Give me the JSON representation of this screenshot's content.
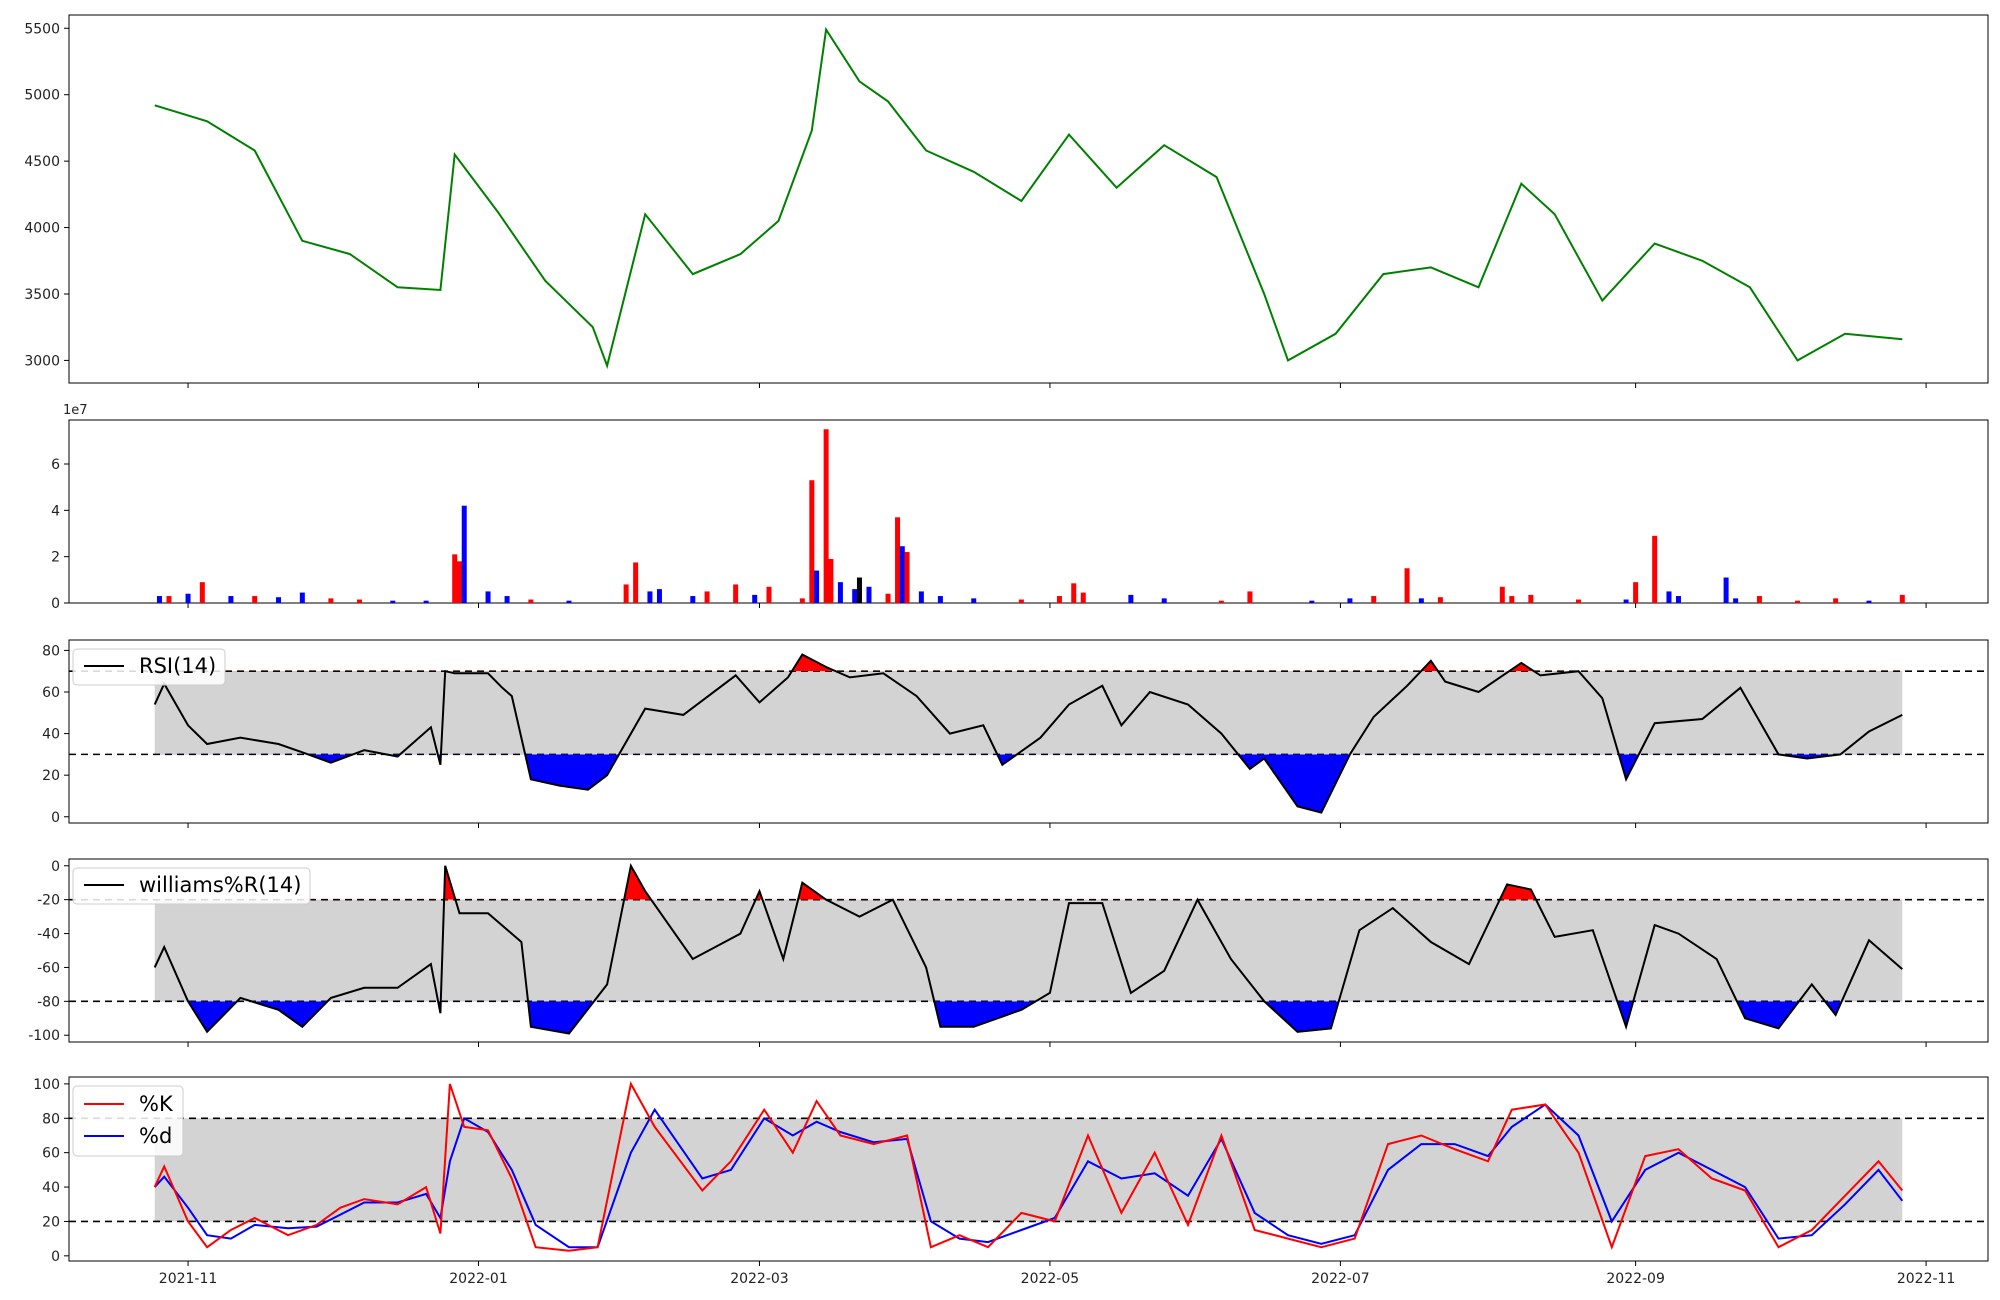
{
  "figure": {
    "x_ticks": [
      "2021-11",
      "2022-01",
      "2022-03",
      "2022-05",
      "2022-07",
      "2022-09",
      "2022-11"
    ],
    "scale_note": "1e7"
  },
  "colors": {
    "price": "#008000",
    "up": "#ff0000",
    "down": "#0000ff",
    "neutral": "#000000",
    "band": "#d3d3d3",
    "k": "#ff0000",
    "d": "#0000ff"
  },
  "chart_data": [
    {
      "type": "line",
      "name": "price",
      "y_ticks": [
        "3000",
        "3500",
        "4000",
        "4500",
        "5000",
        "5500"
      ],
      "ylim": [
        2830,
        5600
      ],
      "x_dates": [
        "2021-10-25",
        "2021-11-05",
        "2021-11-15",
        "2021-11-25",
        "2021-12-05",
        "2021-12-15",
        "2021-12-24",
        "2021-12-27",
        "2022-01-05",
        "2022-01-15",
        "2022-01-25",
        "2022-01-28",
        "2022-02-05",
        "2022-02-15",
        "2022-02-25",
        "2022-03-05",
        "2022-03-12",
        "2022-03-15",
        "2022-03-22",
        "2022-03-28",
        "2022-04-05",
        "2022-04-15",
        "2022-04-25",
        "2022-05-05",
        "2022-05-15",
        "2022-05-25",
        "2022-06-05",
        "2022-06-15",
        "2022-06-20",
        "2022-06-30",
        "2022-07-10",
        "2022-07-20",
        "2022-07-30",
        "2022-08-08",
        "2022-08-15",
        "2022-08-25",
        "2022-09-05",
        "2022-09-15",
        "2022-09-25",
        "2022-10-05",
        "2022-10-15",
        "2022-10-27"
      ],
      "values": [
        4920,
        4800,
        4580,
        3900,
        3800,
        3550,
        3530,
        4550,
        4120,
        3600,
        3250,
        2960,
        4100,
        3650,
        3800,
        4050,
        4730,
        5490,
        5100,
        4950,
        4580,
        4420,
        4200,
        4700,
        4300,
        4620,
        4380,
        3500,
        3000,
        3200,
        3650,
        3700,
        3550,
        4330,
        4100,
        3450,
        3880,
        3750,
        3550,
        3000,
        3200,
        3160
      ]
    },
    {
      "type": "bar",
      "name": "volume",
      "y_ticks": [
        "0",
        "2",
        "4",
        "6"
      ],
      "ylim": [
        0,
        7.9
      ],
      "bars": [
        {
          "date": "2021-10-26",
          "value": 0.3,
          "dir": "down"
        },
        {
          "date": "2021-10-28",
          "value": 0.3,
          "dir": "up"
        },
        {
          "date": "2021-11-01",
          "value": 0.4,
          "dir": "down"
        },
        {
          "date": "2021-11-04",
          "value": 0.9,
          "dir": "up"
        },
        {
          "date": "2021-11-10",
          "value": 0.3,
          "dir": "down"
        },
        {
          "date": "2021-11-15",
          "value": 0.3,
          "dir": "up"
        },
        {
          "date": "2021-11-20",
          "value": 0.25,
          "dir": "down"
        },
        {
          "date": "2021-11-25",
          "value": 0.45,
          "dir": "down"
        },
        {
          "date": "2021-12-01",
          "value": 0.2,
          "dir": "up"
        },
        {
          "date": "2021-12-07",
          "value": 0.15,
          "dir": "up"
        },
        {
          "date": "2021-12-14",
          "value": 0.1,
          "dir": "down"
        },
        {
          "date": "2021-12-21",
          "value": 0.1,
          "dir": "down"
        },
        {
          "date": "2021-12-27",
          "value": 2.1,
          "dir": "up"
        },
        {
          "date": "2021-12-28",
          "value": 1.8,
          "dir": "up"
        },
        {
          "date": "2021-12-29",
          "value": 4.2,
          "dir": "down"
        },
        {
          "date": "2022-01-03",
          "value": 0.5,
          "dir": "down"
        },
        {
          "date": "2022-01-07",
          "value": 0.3,
          "dir": "down"
        },
        {
          "date": "2022-01-12",
          "value": 0.15,
          "dir": "up"
        },
        {
          "date": "2022-01-20",
          "value": 0.1,
          "dir": "down"
        },
        {
          "date": "2022-02-01",
          "value": 0.8,
          "dir": "up"
        },
        {
          "date": "2022-02-03",
          "value": 1.75,
          "dir": "up"
        },
        {
          "date": "2022-02-06",
          "value": 0.5,
          "dir": "down"
        },
        {
          "date": "2022-02-08",
          "value": 0.6,
          "dir": "down"
        },
        {
          "date": "2022-02-15",
          "value": 0.3,
          "dir": "down"
        },
        {
          "date": "2022-02-18",
          "value": 0.5,
          "dir": "up"
        },
        {
          "date": "2022-02-24",
          "value": 0.8,
          "dir": "up"
        },
        {
          "date": "2022-02-28",
          "value": 0.35,
          "dir": "down"
        },
        {
          "date": "2022-03-03",
          "value": 0.7,
          "dir": "up"
        },
        {
          "date": "2022-03-10",
          "value": 0.2,
          "dir": "up"
        },
        {
          "date": "2022-03-12",
          "value": 5.3,
          "dir": "up"
        },
        {
          "date": "2022-03-13",
          "value": 1.4,
          "dir": "down"
        },
        {
          "date": "2022-03-15",
          "value": 7.5,
          "dir": "up"
        },
        {
          "date": "2022-03-16",
          "value": 1.9,
          "dir": "up"
        },
        {
          "date": "2022-03-18",
          "value": 0.9,
          "dir": "down"
        },
        {
          "date": "2022-03-21",
          "value": 0.6,
          "dir": "down"
        },
        {
          "date": "2022-03-22",
          "value": 1.1,
          "dir": "neutral"
        },
        {
          "date": "2022-03-24",
          "value": 0.7,
          "dir": "down"
        },
        {
          "date": "2022-03-28",
          "value": 0.4,
          "dir": "up"
        },
        {
          "date": "2022-03-30",
          "value": 3.7,
          "dir": "up"
        },
        {
          "date": "2022-03-31",
          "value": 2.45,
          "dir": "down"
        },
        {
          "date": "2022-04-01",
          "value": 2.2,
          "dir": "up"
        },
        {
          "date": "2022-04-04",
          "value": 0.5,
          "dir": "down"
        },
        {
          "date": "2022-04-08",
          "value": 0.3,
          "dir": "down"
        },
        {
          "date": "2022-04-15",
          "value": 0.2,
          "dir": "down"
        },
        {
          "date": "2022-04-25",
          "value": 0.15,
          "dir": "up"
        },
        {
          "date": "2022-05-03",
          "value": 0.3,
          "dir": "up"
        },
        {
          "date": "2022-05-06",
          "value": 0.85,
          "dir": "up"
        },
        {
          "date": "2022-05-08",
          "value": 0.45,
          "dir": "up"
        },
        {
          "date": "2022-05-18",
          "value": 0.35,
          "dir": "down"
        },
        {
          "date": "2022-05-25",
          "value": 0.2,
          "dir": "down"
        },
        {
          "date": "2022-06-06",
          "value": 0.1,
          "dir": "up"
        },
        {
          "date": "2022-06-12",
          "value": 0.5,
          "dir": "up"
        },
        {
          "date": "2022-06-25",
          "value": 0.1,
          "dir": "down"
        },
        {
          "date": "2022-07-03",
          "value": 0.2,
          "dir": "down"
        },
        {
          "date": "2022-07-08",
          "value": 0.3,
          "dir": "up"
        },
        {
          "date": "2022-07-15",
          "value": 1.5,
          "dir": "up"
        },
        {
          "date": "2022-07-18",
          "value": 0.2,
          "dir": "down"
        },
        {
          "date": "2022-07-22",
          "value": 0.25,
          "dir": "up"
        },
        {
          "date": "2022-08-04",
          "value": 0.7,
          "dir": "up"
        },
        {
          "date": "2022-08-06",
          "value": 0.3,
          "dir": "up"
        },
        {
          "date": "2022-08-10",
          "value": 0.35,
          "dir": "up"
        },
        {
          "date": "2022-08-20",
          "value": 0.15,
          "dir": "up"
        },
        {
          "date": "2022-08-30",
          "value": 0.15,
          "dir": "down"
        },
        {
          "date": "2022-09-01",
          "value": 0.9,
          "dir": "up"
        },
        {
          "date": "2022-09-05",
          "value": 2.9,
          "dir": "up"
        },
        {
          "date": "2022-09-08",
          "value": 0.5,
          "dir": "down"
        },
        {
          "date": "2022-09-10",
          "value": 0.3,
          "dir": "down"
        },
        {
          "date": "2022-09-20",
          "value": 1.1,
          "dir": "down"
        },
        {
          "date": "2022-09-22",
          "value": 0.2,
          "dir": "down"
        },
        {
          "date": "2022-09-27",
          "value": 0.3,
          "dir": "up"
        },
        {
          "date": "2022-10-05",
          "value": 0.1,
          "dir": "up"
        },
        {
          "date": "2022-10-13",
          "value": 0.2,
          "dir": "up"
        },
        {
          "date": "2022-10-20",
          "value": 0.1,
          "dir": "down"
        },
        {
          "date": "2022-10-27",
          "value": 0.35,
          "dir": "up"
        }
      ]
    },
    {
      "type": "line",
      "name": "RSI",
      "legend": "RSI(14)",
      "y_ticks": [
        "0",
        "20",
        "40",
        "60",
        "80"
      ],
      "ylim": [
        -3,
        85
      ],
      "band": [
        30,
        70
      ],
      "x_dates": [
        "2021-10-25",
        "2021-10-27",
        "2021-11-01",
        "2021-11-05",
        "2021-11-12",
        "2021-11-20",
        "2021-11-25",
        "2021-12-01",
        "2021-12-08",
        "2021-12-15",
        "2021-12-22",
        "2021-12-24",
        "2021-12-25",
        "2021-12-27",
        "2022-01-03",
        "2022-01-06",
        "2022-01-08",
        "2022-01-12",
        "2022-01-18",
        "2022-01-24",
        "2022-01-28",
        "2022-02-05",
        "2022-02-13",
        "2022-02-24",
        "2022-03-01",
        "2022-03-07",
        "2022-03-10",
        "2022-03-15",
        "2022-03-20",
        "2022-03-27",
        "2022-04-03",
        "2022-04-10",
        "2022-04-17",
        "2022-04-21",
        "2022-04-29",
        "2022-05-05",
        "2022-05-12",
        "2022-05-16",
        "2022-05-22",
        "2022-05-30",
        "2022-06-06",
        "2022-06-12",
        "2022-06-15",
        "2022-06-22",
        "2022-06-27",
        "2022-07-03",
        "2022-07-08",
        "2022-07-15",
        "2022-07-20",
        "2022-07-23",
        "2022-07-30",
        "2022-08-08",
        "2022-08-12",
        "2022-08-20",
        "2022-08-25",
        "2022-08-30",
        "2022-09-05",
        "2022-09-15",
        "2022-09-23",
        "2022-10-01",
        "2022-10-07",
        "2022-10-14",
        "2022-10-20",
        "2022-10-27"
      ],
      "values": [
        54,
        64,
        44,
        35,
        38,
        35,
        31,
        26,
        32,
        29,
        43,
        25,
        70,
        69,
        69,
        62,
        58,
        18,
        15,
        13,
        20,
        52,
        49,
        68,
        55,
        67,
        78,
        72,
        67,
        69,
        58,
        40,
        44,
        25,
        38,
        54,
        63,
        44,
        60,
        54,
        40,
        23,
        28,
        5,
        2,
        30,
        48,
        63,
        75,
        65,
        60,
        74,
        68,
        70,
        57,
        18,
        45,
        47,
        62,
        30,
        28,
        30,
        41,
        49
      ]
    },
    {
      "type": "line",
      "name": "williams",
      "legend": "williams%R(14)",
      "y_ticks": [
        "-100",
        "-80",
        "-60",
        "-40",
        "-20",
        "0"
      ],
      "ylim": [
        -104,
        4
      ],
      "band": [
        -80,
        -20
      ],
      "x_dates": [
        "2021-10-25",
        "2021-10-27",
        "2021-11-01",
        "2021-11-05",
        "2021-11-12",
        "2021-11-20",
        "2021-11-25",
        "2021-12-01",
        "2021-12-08",
        "2021-12-15",
        "2021-12-22",
        "2021-12-24",
        "2021-12-25",
        "2021-12-28",
        "2022-01-03",
        "2022-01-10",
        "2022-01-12",
        "2022-01-20",
        "2022-01-28",
        "2022-02-02",
        "2022-02-05",
        "2022-02-15",
        "2022-02-25",
        "2022-03-01",
        "2022-03-06",
        "2022-03-10",
        "2022-03-15",
        "2022-03-22",
        "2022-03-29",
        "2022-04-05",
        "2022-04-08",
        "2022-04-15",
        "2022-04-25",
        "2022-05-01",
        "2022-05-05",
        "2022-05-12",
        "2022-05-18",
        "2022-05-25",
        "2022-06-01",
        "2022-06-08",
        "2022-06-15",
        "2022-06-22",
        "2022-06-29",
        "2022-07-05",
        "2022-07-12",
        "2022-07-20",
        "2022-07-28",
        "2022-08-05",
        "2022-08-10",
        "2022-08-15",
        "2022-08-23",
        "2022-08-30",
        "2022-09-05",
        "2022-09-10",
        "2022-09-18",
        "2022-09-24",
        "2022-10-01",
        "2022-10-08",
        "2022-10-13",
        "2022-10-20",
        "2022-10-27"
      ],
      "values": [
        -60,
        -48,
        -80,
        -98,
        -78,
        -85,
        -95,
        -78,
        -72,
        -72,
        -58,
        -87,
        0,
        -28,
        -28,
        -45,
        -95,
        -99,
        -70,
        0,
        -15,
        -55,
        -40,
        -15,
        -55,
        -10,
        -20,
        -30,
        -20,
        -60,
        -95,
        -95,
        -85,
        -75,
        -22,
        -22,
        -75,
        -62,
        -20,
        -55,
        -80,
        -98,
        -96,
        -38,
        -25,
        -45,
        -58,
        -11,
        -14,
        -42,
        -38,
        -95,
        -35,
        -40,
        -55,
        -90,
        -96,
        -70,
        -88,
        -44,
        -61
      ]
    },
    {
      "type": "line",
      "name": "stochastic",
      "y_ticks": [
        "0",
        "20",
        "40",
        "60",
        "80",
        "100"
      ],
      "ylim": [
        -3,
        104
      ],
      "band": [
        20,
        80
      ],
      "x_dates": [
        "2021-10-25",
        "2021-10-27",
        "2021-11-01",
        "2021-11-05",
        "2021-11-10",
        "2021-11-15",
        "2021-11-22",
        "2021-11-28",
        "2021-12-03",
        "2021-12-08",
        "2021-12-15",
        "2021-12-21",
        "2021-12-24",
        "2021-12-26",
        "2021-12-29",
        "2022-01-03",
        "2022-01-08",
        "2022-01-13",
        "2022-01-20",
        "2022-01-26",
        "2022-02-02",
        "2022-02-07",
        "2022-02-17",
        "2022-02-23",
        "2022-03-02",
        "2022-03-08",
        "2022-03-13",
        "2022-03-18",
        "2022-03-25",
        "2022-04-01",
        "2022-04-06",
        "2022-04-12",
        "2022-04-18",
        "2022-04-25",
        "2022-05-02",
        "2022-05-09",
        "2022-05-16",
        "2022-05-23",
        "2022-05-30",
        "2022-06-06",
        "2022-06-13",
        "2022-06-20",
        "2022-06-27",
        "2022-07-04",
        "2022-07-11",
        "2022-07-18",
        "2022-07-25",
        "2022-08-01",
        "2022-08-06",
        "2022-08-13",
        "2022-08-20",
        "2022-08-27",
        "2022-09-03",
        "2022-09-10",
        "2022-09-17",
        "2022-09-24",
        "2022-10-01",
        "2022-10-08",
        "2022-10-15",
        "2022-10-22",
        "2022-10-27"
      ],
      "series": [
        {
          "name": "%K",
          "values": [
            40,
            52,
            20,
            5,
            15,
            22,
            12,
            18,
            28,
            33,
            30,
            40,
            13,
            100,
            75,
            73,
            45,
            5,
            3,
            5,
            100,
            75,
            38,
            55,
            85,
            60,
            90,
            70,
            65,
            70,
            5,
            12,
            5,
            25,
            20,
            70,
            25,
            60,
            18,
            70,
            15,
            10,
            5,
            10,
            65,
            70,
            62,
            55,
            85,
            88,
            60,
            5,
            58,
            62,
            45,
            38,
            5,
            15,
            35,
            55,
            38
          ]
        },
        {
          "name": "%d",
          "values": [
            40,
            46,
            28,
            12,
            10,
            18,
            16,
            17,
            24,
            31,
            31,
            36,
            22,
            55,
            80,
            72,
            50,
            18,
            5,
            5,
            60,
            85,
            45,
            50,
            80,
            70,
            78,
            72,
            66,
            68,
            20,
            10,
            8,
            15,
            22,
            55,
            45,
            48,
            35,
            68,
            25,
            12,
            7,
            12,
            50,
            65,
            65,
            58,
            75,
            88,
            70,
            20,
            50,
            60,
            50,
            40,
            10,
            12,
            30,
            50,
            32
          ]
        }
      ]
    }
  ]
}
